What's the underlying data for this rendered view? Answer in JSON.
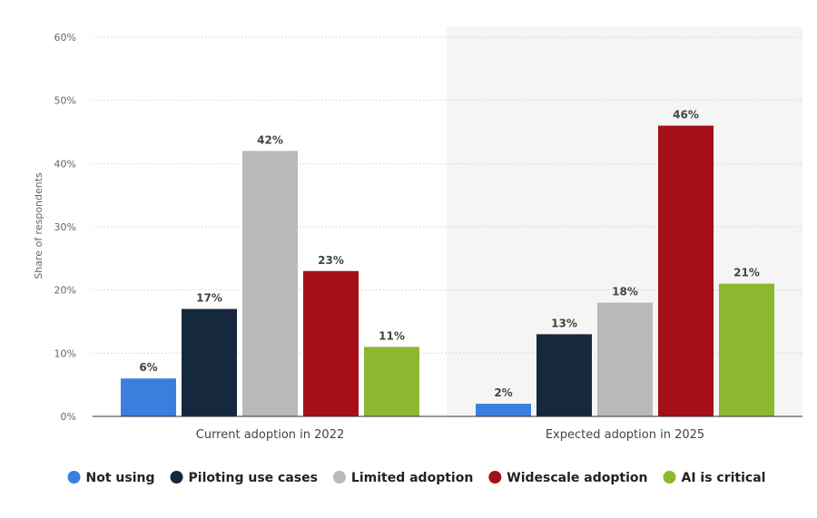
{
  "chart_data": {
    "type": "bar",
    "ylabel": "Share of respondents",
    "xlabel": "",
    "ylim": [
      0,
      60
    ],
    "yticks": [
      0,
      10,
      20,
      30,
      40,
      50,
      60
    ],
    "ytick_labels": [
      "0%",
      "10%",
      "20%",
      "30%",
      "40%",
      "50%",
      "60%"
    ],
    "grid": true,
    "legend_position": "bottom",
    "categories": [
      "Current adoption in 2022",
      "Expected adoption in 2025"
    ],
    "highlighted_category": "Expected adoption in 2025",
    "series": [
      {
        "name": "Not using",
        "values": [
          6,
          2
        ],
        "labels": [
          "6%",
          "2%"
        ],
        "color": "#3a7fde"
      },
      {
        "name": "Piloting use cases",
        "values": [
          17,
          13
        ],
        "labels": [
          "17%",
          "13%"
        ],
        "color": "#15283e"
      },
      {
        "name": "Limited adoption",
        "values": [
          42,
          18
        ],
        "labels": [
          "42%",
          "18%"
        ],
        "color": "#b9b9b9"
      },
      {
        "name": "Widescale adoption",
        "values": [
          23,
          46
        ],
        "labels": [
          "23%",
          "46%"
        ],
        "color": "#a50f16"
      },
      {
        "name": "AI is critical",
        "values": [
          11,
          21
        ],
        "labels": [
          "11%",
          "21%"
        ],
        "color": "#8cb830"
      }
    ]
  }
}
